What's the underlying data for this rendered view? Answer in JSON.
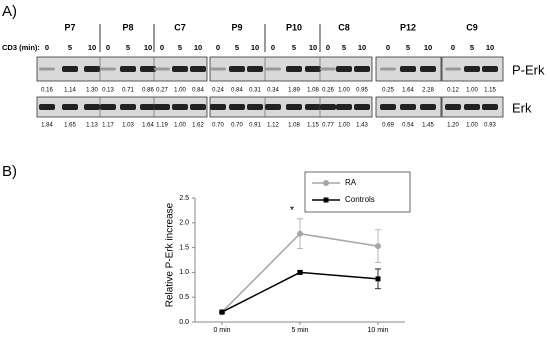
{
  "blot": {
    "label": "A)",
    "stimulus_label": "CD3 (min):",
    "time_points": [
      "0",
      "5",
      "10"
    ],
    "rows": [
      "P-Erk",
      "Erk"
    ],
    "groups": [
      {
        "name": "P7",
        "p_erk": [
          "0.16",
          "1.14",
          "1.30"
        ],
        "erk": [
          "1.84",
          "1.65",
          "1.13"
        ]
      },
      {
        "name": "P8",
        "p_erk": [
          "0.13",
          "0.71",
          "0.86"
        ],
        "erk": [
          "1.17",
          "1.03",
          "1.64"
        ]
      },
      {
        "name": "C7",
        "p_erk": [
          "0.27",
          "1.00",
          "0.84"
        ],
        "erk": [
          "1.19",
          "1.00",
          "1.62"
        ]
      },
      {
        "name": "P9",
        "p_erk": [
          "0.24",
          "0.84",
          "0.31"
        ],
        "erk": [
          "0.70",
          "0.70",
          "0.91"
        ]
      },
      {
        "name": "P10",
        "p_erk": [
          "0.34",
          "1.89",
          "1.08"
        ],
        "erk": [
          "1.12",
          "1.08",
          "1.15"
        ]
      },
      {
        "name": "C8",
        "p_erk": [
          "0.26",
          "1.00",
          "0.95"
        ],
        "erk": [
          "0.77",
          "1.00",
          "1.43"
        ]
      },
      {
        "name": "P12",
        "p_erk": [
          "0.25",
          "1.64",
          "2.28"
        ],
        "erk": [
          "0.69",
          "0.54",
          "1.45"
        ]
      },
      {
        "name": "C9",
        "p_erk": [
          "0.12",
          "1.00",
          "1.15"
        ],
        "erk": [
          "1.20",
          "1.00",
          "0.93"
        ]
      }
    ]
  },
  "chart_data": {
    "type": "line",
    "panel_label": "B)",
    "y_label": "Relative P-Erk increase",
    "annotation": "*",
    "categories": [
      "0 min",
      "5 min",
      "10 min"
    ],
    "series": [
      {
        "name": "RA",
        "color": "#a6a6a6",
        "marker": "circle",
        "values": [
          0.2,
          1.78,
          1.53
        ],
        "errors": [
          0.02,
          0.3,
          0.33
        ]
      },
      {
        "name": "Controls",
        "color": "#000000",
        "marker": "square",
        "values": [
          0.2,
          1.0,
          0.87
        ],
        "errors": [
          0.02,
          0.03,
          0.2
        ]
      }
    ],
    "ylim": [
      0,
      2.5
    ],
    "yticks": [
      {
        "value": 0,
        "label": "0.0"
      },
      0.5,
      {
        "value": 1,
        "label": "1.0"
      },
      1.5,
      {
        "value": 2,
        "label": "2.0"
      },
      2.5
    ],
    "legend": "upper-right"
  }
}
